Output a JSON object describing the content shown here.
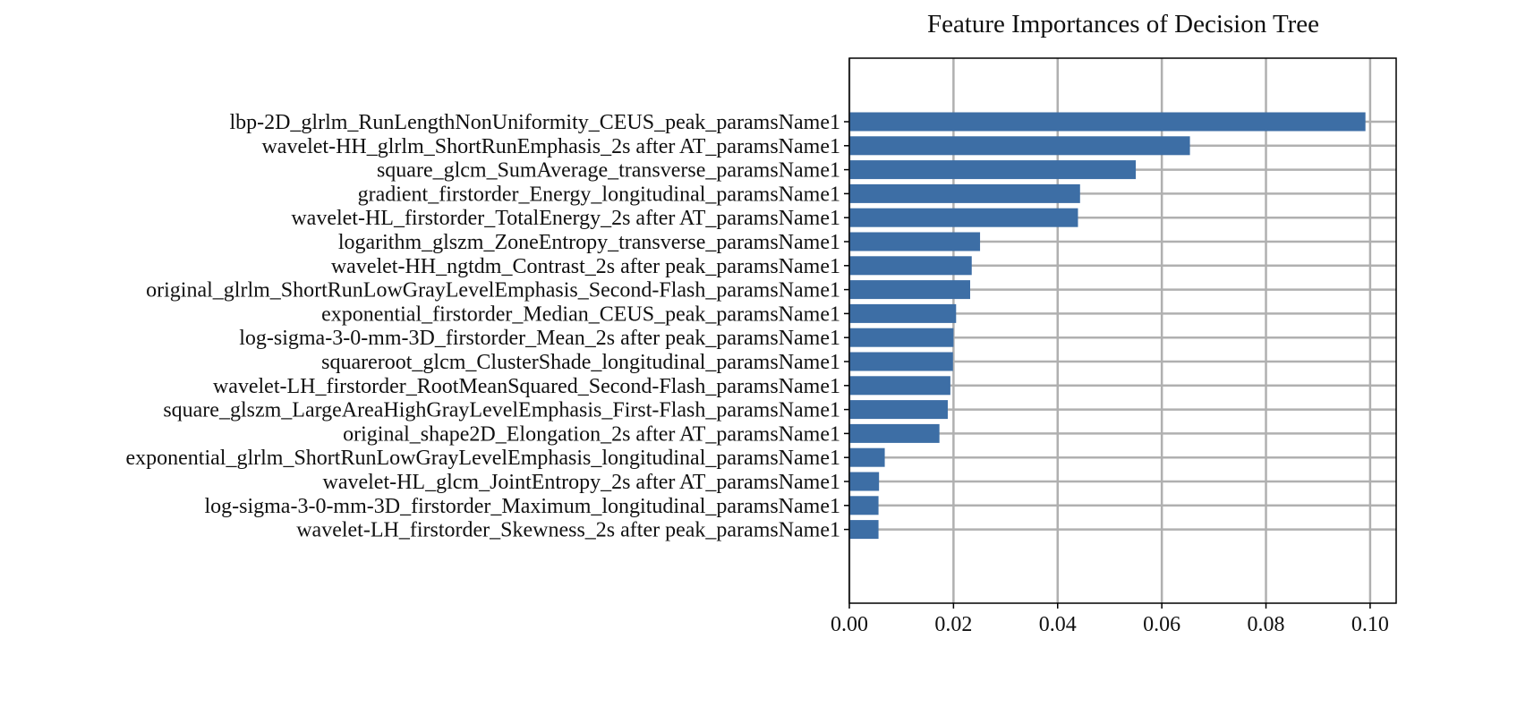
{
  "chart_data": {
    "type": "bar",
    "orientation": "horizontal",
    "title": "Feature Importances of Decision Tree",
    "xlabel": "",
    "ylabel": "",
    "xlim": [
      0,
      0.105
    ],
    "xticks": [
      "0.00",
      "0.02",
      "0.04",
      "0.06",
      "0.08",
      "0.10"
    ],
    "grid": true,
    "bar_color": "#3d6ea5",
    "grid_color": "#b0b0b0",
    "categories": [
      "lbp-2D_glrlm_RunLengthNonUniformity_CEUS_peak_paramsName1",
      "wavelet-HH_glrlm_ShortRunEmphasis_2s after AT_paramsName1",
      "square_glcm_SumAverage_transverse_paramsName1",
      "gradient_firstorder_Energy_longitudinal_paramsName1",
      "wavelet-HL_firstorder_TotalEnergy_2s after AT_paramsName1",
      "logarithm_glszm_ZoneEntropy_transverse_paramsName1",
      "wavelet-HH_ngtdm_Contrast_2s after peak_paramsName1",
      "original_glrlm_ShortRunLowGrayLevelEmphasis_Second-Flash_paramsName1",
      "exponential_firstorder_Median_CEUS_peak_paramsName1",
      "log-sigma-3-0-mm-3D_firstorder_Mean_2s after peak_paramsName1",
      "squareroot_glcm_ClusterShade_longitudinal_paramsName1",
      "wavelet-LH_firstorder_RootMeanSquared_Second-Flash_paramsName1",
      "square_glszm_LargeAreaHighGrayLevelEmphasis_First-Flash_paramsName1",
      "original_shape2D_Elongation_2s after AT_paramsName1",
      "exponential_glrlm_ShortRunLowGrayLevelEmphasis_longitudinal_paramsName1",
      "wavelet-HL_glcm_JointEntropy_2s after AT_paramsName1",
      "log-sigma-3-0-mm-3D_firstorder_Maximum_longitudinal_paramsName1",
      "wavelet-LH_firstorder_Skewness_2s after peak_paramsName1"
    ],
    "values": [
      0.0991,
      0.0654,
      0.055,
      0.0443,
      0.0439,
      0.0251,
      0.0235,
      0.0232,
      0.0205,
      0.02,
      0.0199,
      0.0194,
      0.0189,
      0.0173,
      0.0068,
      0.0057,
      0.0056,
      0.0056
    ]
  }
}
